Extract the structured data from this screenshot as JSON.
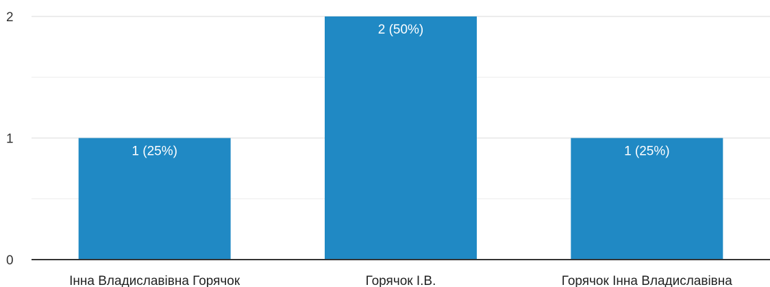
{
  "chart_data": {
    "type": "bar",
    "categories": [
      "Інна Владиславівна Горячок",
      "Горячок І.В.",
      "Горячок Інна Владиславівна"
    ],
    "values": [
      1,
      2,
      1
    ],
    "data_labels": [
      "1 (25%)",
      "2 (50%)",
      "1 (25%)"
    ],
    "ylim": [
      0,
      2
    ],
    "y_ticks": [
      0,
      1,
      2
    ],
    "y_tick_labels": [
      "0",
      "1",
      "2"
    ],
    "minor_gridlines": [
      0.5,
      1.5
    ],
    "grid": true,
    "legend": "none",
    "colors": {
      "bar": "#2089c4",
      "axis": "#333333",
      "grid": "#e6e6e6",
      "grid_minor": "#f2f2f2",
      "bar_label": "#ffffff"
    }
  }
}
